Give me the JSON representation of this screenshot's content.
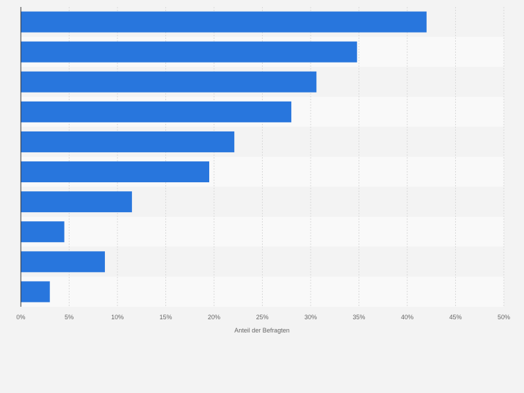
{
  "colors": {
    "bar": "#2876dd",
    "row_band_a": "#f9f9f9",
    "row_band_b": "#f3f3f3",
    "grid": "#d9d9d9",
    "axis": "#333333",
    "tick_label": "#666666"
  },
  "chart_data": {
    "type": "bar",
    "orientation": "horizontal",
    "title": "",
    "categories": [
      "",
      "",
      "",
      "",
      "",
      "",
      "",
      "",
      "",
      ""
    ],
    "series": [
      {
        "name": "Anteil der Befragten",
        "values": [
          42,
          34.8,
          30.6,
          28,
          22.1,
          19.5,
          11.5,
          4.5,
          8.7,
          3
        ]
      }
    ],
    "xlabel": "Anteil der Befragten",
    "ylabel": "",
    "xlim": [
      0,
      50
    ],
    "xticks": [
      "0%",
      "5%",
      "10%",
      "15%",
      "20%",
      "25%",
      "30%",
      "35%",
      "40%",
      "45%",
      "50%"
    ],
    "grid": true
  }
}
